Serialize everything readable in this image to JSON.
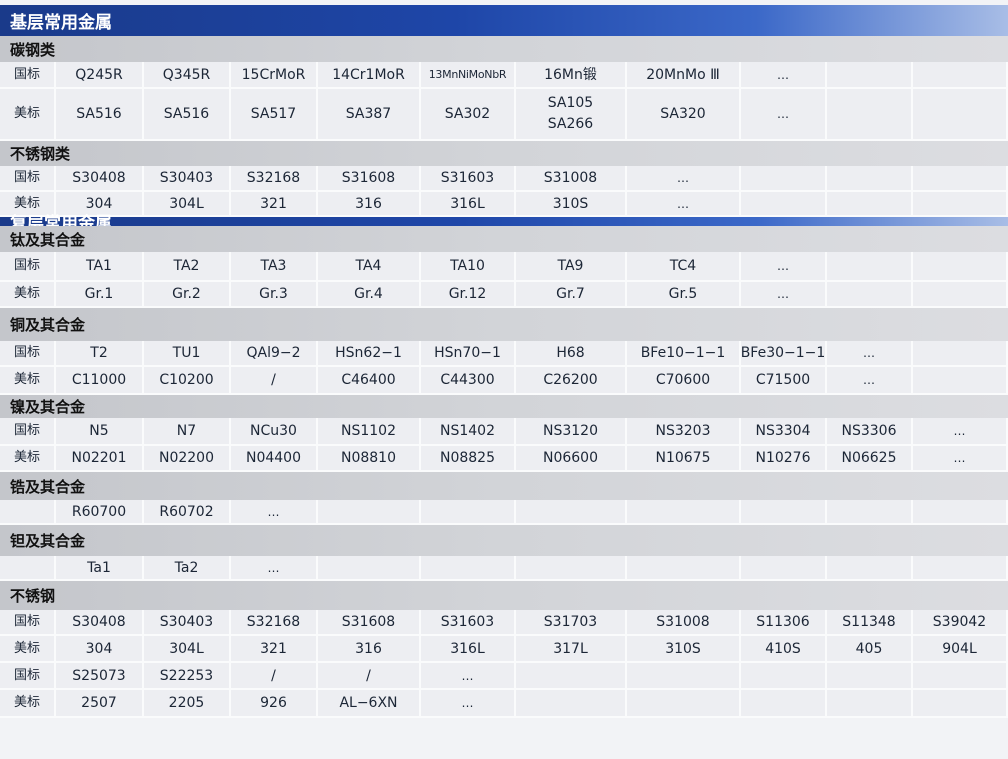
{
  "rows": [
    {
      "type": "main",
      "title": "基层常用金属"
    },
    {
      "type": "sub",
      "title": "碳钢类"
    },
    {
      "type": "data",
      "cells": [
        "国标",
        "Q245R",
        "Q345R",
        "15CrMoR",
        "14Cr1MoR",
        "13MnNiMoNbR",
        "16Mn锻",
        "20MnMo Ⅲ",
        "…",
        "",
        ""
      ]
    },
    {
      "type": "data",
      "cells": [
        "美标",
        "SA516",
        "SA516",
        "SA517",
        "SA387",
        "SA302",
        "SA105\nSA266",
        "SA320",
        "…",
        "",
        ""
      ]
    },
    {
      "type": "sub",
      "title": "不锈钢类"
    },
    {
      "type": "data",
      "cells": [
        "国标",
        "S30408",
        "S30403",
        "S32168",
        "S31608",
        "S31603",
        "S31008",
        "…",
        "",
        "",
        ""
      ]
    },
    {
      "type": "data",
      "cells": [
        "美标",
        "304",
        "304L",
        "321",
        "316",
        "316L",
        "310S",
        "…",
        "",
        "",
        ""
      ]
    },
    {
      "type": "main",
      "title": "复层常用金属"
    },
    {
      "type": "sub",
      "title": "钛及其合金"
    },
    {
      "type": "data",
      "cells": [
        "国标",
        "TA1",
        "TA2",
        "TA3",
        "TA4",
        "TA10",
        "TA9",
        "TC4",
        "…",
        "",
        ""
      ]
    },
    {
      "type": "data",
      "cells": [
        "美标",
        "Gr.1",
        "Gr.2",
        "Gr.3",
        "Gr.4",
        "Gr.12",
        "Gr.7",
        "Gr.5",
        "…",
        "",
        ""
      ]
    },
    {
      "type": "sub",
      "title": "铜及其合金"
    },
    {
      "type": "data",
      "cells": [
        "国标",
        "T2",
        "TU1",
        "QAl9−2",
        "HSn62−1",
        "HSn70−1",
        "H68",
        "BFe10−1−1",
        "BFe30−1−1",
        "…",
        ""
      ]
    },
    {
      "type": "data",
      "cells": [
        "美标",
        "C11000",
        "C10200",
        "/",
        "C46400",
        "C44300",
        "C26200",
        "C70600",
        "C71500",
        "…",
        ""
      ]
    },
    {
      "type": "sub",
      "title": "镍及其合金"
    },
    {
      "type": "data",
      "cells": [
        "国标",
        "N5",
        "N7",
        "NCu30",
        "NS1102",
        "NS1402",
        "NS3120",
        "NS3203",
        "NS3304",
        "NS3306",
        "…"
      ]
    },
    {
      "type": "data",
      "cells": [
        "美标",
        "N02201",
        "N02200",
        "N04400",
        "N08810",
        "N08825",
        "N06600",
        "N10675",
        "N10276",
        "N06625",
        "…"
      ]
    },
    {
      "type": "sub",
      "title": "锆及其合金"
    },
    {
      "type": "data",
      "cells": [
        "",
        "R60700",
        "R60702",
        "…",
        "",
        "",
        "",
        "",
        "",
        "",
        ""
      ]
    },
    {
      "type": "sub",
      "title": "钽及其合金"
    },
    {
      "type": "data",
      "cells": [
        "",
        "Ta1",
        "Ta2",
        "…",
        "",
        "",
        "",
        "",
        "",
        "",
        ""
      ]
    },
    {
      "type": "sub",
      "title": "不锈钢"
    },
    {
      "type": "data",
      "cells": [
        "国标",
        "S30408",
        "S30403",
        "S32168",
        "S31608",
        "S31603",
        "S31703",
        "S31008",
        "S11306",
        "S11348",
        "S39042"
      ]
    },
    {
      "type": "data",
      "cells": [
        "美标",
        "304",
        "304L",
        "321",
        "316",
        "316L",
        "317L",
        "310S",
        "410S",
        "405",
        "904L"
      ]
    },
    {
      "type": "data",
      "cells": [
        "国标",
        "S25073",
        "S22253",
        "/",
        "/",
        "…",
        "",
        "",
        "",
        "",
        ""
      ]
    },
    {
      "type": "data",
      "cells": [
        "美标",
        "2507",
        "2205",
        "926",
        "AL−6XN",
        "…",
        "",
        "",
        "",
        "",
        ""
      ]
    }
  ]
}
